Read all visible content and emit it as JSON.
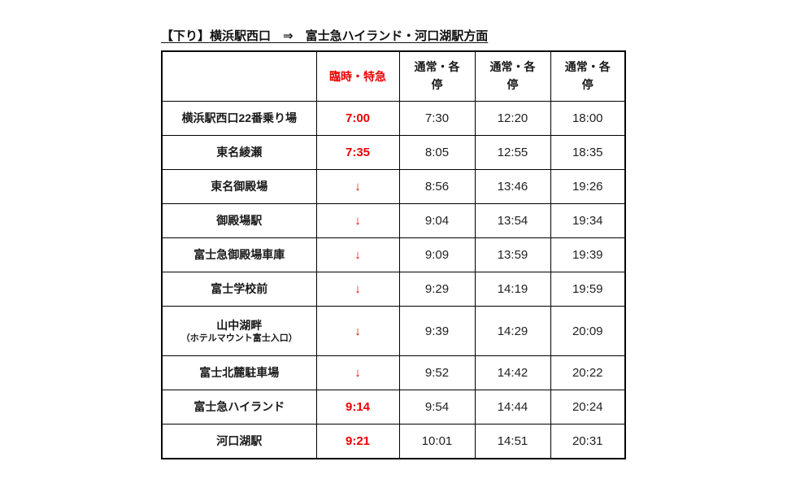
{
  "title": "【下り】横浜駅西口　⇒　富士急ハイランド・河口湖駅方面",
  "colors": {
    "express_column_bg": "#FBCA6A",
    "express_text": "#EE0000",
    "border": "#000000"
  },
  "header": {
    "express": "臨時・特急",
    "regular": "通常・各停"
  },
  "pass_symbol": "↓",
  "rows": [
    {
      "station": "横浜駅西口22番乗り場",
      "express": "7:00",
      "t1": "7:30",
      "t2": "12:20",
      "t3": "18:00"
    },
    {
      "station": "東名綾瀬",
      "express": "7:35",
      "t1": "8:05",
      "t2": "12:55",
      "t3": "18:35"
    },
    {
      "station": "東名御殿場",
      "express": "↓",
      "t1": "8:56",
      "t2": "13:46",
      "t3": "19:26"
    },
    {
      "station": "御殿場駅",
      "express": "↓",
      "t1": "9:04",
      "t2": "13:54",
      "t3": "19:34"
    },
    {
      "station": "富士急御殿場車庫",
      "express": "↓",
      "t1": "9:09",
      "t2": "13:59",
      "t3": "19:39"
    },
    {
      "station": "富士学校前",
      "express": "↓",
      "t1": "9:29",
      "t2": "14:19",
      "t3": "19:59"
    },
    {
      "station": "山中湖畔",
      "station_sub": "（ホテルマウント富士入口）",
      "express": "↓",
      "t1": "9:39",
      "t2": "14:29",
      "t3": "20:09"
    },
    {
      "station": "富士北麓駐車場",
      "express": "↓",
      "t1": "9:52",
      "t2": "14:42",
      "t3": "20:22"
    },
    {
      "station": "富士急ハイランド",
      "express": "9:14",
      "t1": "9:54",
      "t2": "14:44",
      "t3": "20:24"
    },
    {
      "station": "河口湖駅",
      "express": "9:21",
      "t1": "10:01",
      "t2": "14:51",
      "t3": "20:31"
    }
  ]
}
